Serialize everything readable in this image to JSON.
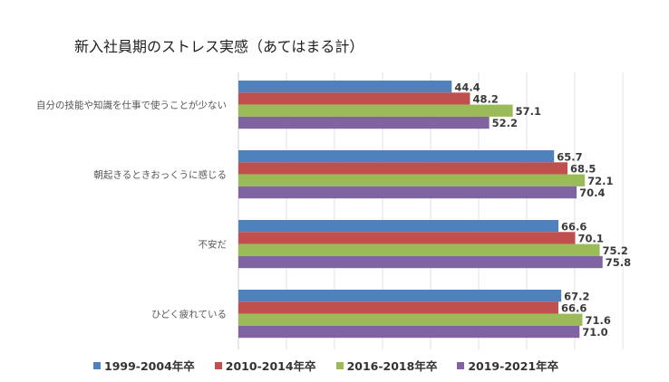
{
  "chart_data": {
    "type": "bar",
    "orientation": "horizontal",
    "title": "新入社員期のストレス実感（あてはまる計）",
    "categories": [
      "自分の技能や知識を仕事で使うことが少ない",
      "朝起きるときおっくうに感じる",
      "不安だ",
      "ひどく疲れている"
    ],
    "series": [
      {
        "name": "1999-2004年卒",
        "color": "#4f81bd",
        "values": [
          44.4,
          65.7,
          66.6,
          67.2
        ]
      },
      {
        "name": "2010-2014年卒",
        "color": "#c0504d",
        "values": [
          48.2,
          68.5,
          70.1,
          66.6
        ]
      },
      {
        "name": "2016-2018年卒",
        "color": "#9bbb59",
        "values": [
          57.1,
          72.1,
          75.2,
          71.6
        ]
      },
      {
        "name": "2019-2021年卒",
        "color": "#8064a2",
        "values": [
          52.2,
          70.4,
          75.8,
          71.0
        ]
      }
    ],
    "xlim": [
      0,
      80
    ],
    "grid": true,
    "legend": "bottom",
    "data_labels": true
  }
}
